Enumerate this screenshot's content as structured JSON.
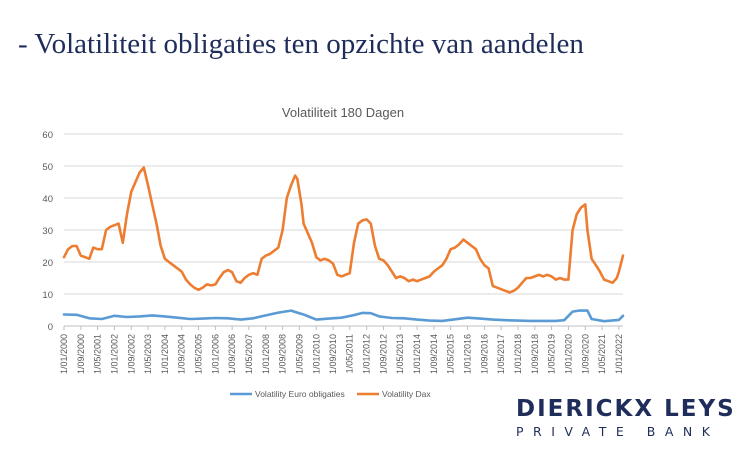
{
  "slide_title": "- Volatiliteit obligaties ten opzichte van aandelen",
  "brand": {
    "name": "DIERICKX LEYS",
    "tagline": "PRIVATE BANK"
  },
  "colors": {
    "title": "#1f2d5a",
    "series_bonds": "#5b9bd5",
    "series_dax": "#ed7d31",
    "grid": "#d9d9d9",
    "axis_text": "#595959"
  },
  "chart_data": {
    "type": "line",
    "title": "Volatiliteit 180 Dagen",
    "xlabel": "",
    "ylabel": "",
    "ylim": [
      0,
      60
    ],
    "yticks": [
      0,
      10,
      20,
      30,
      40,
      50,
      60
    ],
    "grid": true,
    "legend_position": "bottom",
    "x_range": [
      "2000-01-01",
      "2022-03-01"
    ],
    "x_tick_labels": [
      "1/01/2000",
      "1/09/2000",
      "1/05/2001",
      "1/01/2002",
      "1/09/2002",
      "1/05/2003",
      "1/01/2004",
      "1/09/2004",
      "1/05/2005",
      "1/01/2006",
      "1/09/2006",
      "1/05/2007",
      "1/01/2008",
      "1/09/2008",
      "1/05/2009",
      "1/01/2010",
      "1/09/2010",
      "1/05/2011",
      "1/01/2012",
      "1/09/2012",
      "1/05/2013",
      "1/01/2014",
      "1/09/2014",
      "1/05/2015",
      "1/01/2016",
      "1/09/2016",
      "1/05/2017",
      "1/01/2018",
      "1/09/2018",
      "1/05/2019",
      "1/01/2020",
      "1/09/2020",
      "1/05/2021",
      "1/01/2022"
    ],
    "series": [
      {
        "name": "Volatility Euro obligaties",
        "color": "#5b9bd5",
        "points": [
          [
            "2000-01-01",
            3.6
          ],
          [
            "2000-07-01",
            3.5
          ],
          [
            "2001-01-01",
            2.4
          ],
          [
            "2001-07-01",
            2.2
          ],
          [
            "2002-01-01",
            3.2
          ],
          [
            "2002-07-01",
            2.8
          ],
          [
            "2003-01-01",
            3.0
          ],
          [
            "2003-07-01",
            3.3
          ],
          [
            "2004-01-01",
            3.0
          ],
          [
            "2004-07-01",
            2.6
          ],
          [
            "2005-01-01",
            2.2
          ],
          [
            "2005-07-01",
            2.3
          ],
          [
            "2006-01-01",
            2.5
          ],
          [
            "2006-07-01",
            2.4
          ],
          [
            "2007-01-01",
            2.0
          ],
          [
            "2007-07-01",
            2.4
          ],
          [
            "2008-01-01",
            3.3
          ],
          [
            "2008-07-01",
            4.2
          ],
          [
            "2009-01-01",
            4.8
          ],
          [
            "2009-04-01",
            4.2
          ],
          [
            "2009-07-01",
            3.6
          ],
          [
            "2010-01-01",
            2.0
          ],
          [
            "2010-07-01",
            2.3
          ],
          [
            "2011-01-01",
            2.6
          ],
          [
            "2011-07-01",
            3.4
          ],
          [
            "2011-11-01",
            4.1
          ],
          [
            "2012-03-01",
            4.0
          ],
          [
            "2012-07-01",
            3.0
          ],
          [
            "2013-01-01",
            2.5
          ],
          [
            "2013-07-01",
            2.4
          ],
          [
            "2014-01-01",
            2.0
          ],
          [
            "2014-07-01",
            1.7
          ],
          [
            "2015-01-01",
            1.6
          ],
          [
            "2015-07-01",
            2.1
          ],
          [
            "2016-01-01",
            2.6
          ],
          [
            "2016-07-01",
            2.3
          ],
          [
            "2017-01-01",
            2.0
          ],
          [
            "2017-07-01",
            1.8
          ],
          [
            "2018-01-01",
            1.7
          ],
          [
            "2018-07-01",
            1.6
          ],
          [
            "2019-01-01",
            1.6
          ],
          [
            "2019-07-01",
            1.6
          ],
          [
            "2019-11-01",
            1.8
          ],
          [
            "2020-03-01",
            4.5
          ],
          [
            "2020-06-01",
            4.8
          ],
          [
            "2020-10-01",
            4.8
          ],
          [
            "2020-12-01",
            2.2
          ],
          [
            "2021-06-01",
            1.5
          ],
          [
            "2022-01-01",
            1.9
          ],
          [
            "2022-03-01",
            3.2
          ]
        ]
      },
      {
        "name": "Volatility Dax",
        "color": "#ed7d31",
        "points": [
          [
            "2000-01-01",
            21.5
          ],
          [
            "2000-03-01",
            24
          ],
          [
            "2000-05-01",
            25
          ],
          [
            "2000-07-01",
            25
          ],
          [
            "2000-09-01",
            22
          ],
          [
            "2000-11-01",
            21.5
          ],
          [
            "2001-01-01",
            21
          ],
          [
            "2001-03-01",
            24.5
          ],
          [
            "2001-05-01",
            24
          ],
          [
            "2001-07-01",
            24
          ],
          [
            "2001-09-01",
            30
          ],
          [
            "2001-11-01",
            31
          ],
          [
            "2002-01-01",
            31.5
          ],
          [
            "2002-03-01",
            32
          ],
          [
            "2002-05-01",
            26
          ],
          [
            "2002-07-01",
            35
          ],
          [
            "2002-09-01",
            42
          ],
          [
            "2002-11-01",
            45
          ],
          [
            "2003-01-01",
            48
          ],
          [
            "2003-03-01",
            49.5
          ],
          [
            "2003-05-01",
            44
          ],
          [
            "2003-07-01",
            38
          ],
          [
            "2003-09-01",
            32
          ],
          [
            "2003-11-01",
            25
          ],
          [
            "2004-01-01",
            21
          ],
          [
            "2004-03-01",
            20
          ],
          [
            "2004-05-01",
            19
          ],
          [
            "2004-07-01",
            18
          ],
          [
            "2004-09-01",
            17
          ],
          [
            "2004-11-01",
            14.5
          ],
          [
            "2005-01-01",
            13
          ],
          [
            "2005-03-01",
            12
          ],
          [
            "2005-05-01",
            11.3
          ],
          [
            "2005-07-01",
            12
          ],
          [
            "2005-09-01",
            13
          ],
          [
            "2005-11-01",
            12.7
          ],
          [
            "2006-01-01",
            13
          ],
          [
            "2006-03-01",
            15
          ],
          [
            "2006-05-01",
            16.8
          ],
          [
            "2006-07-01",
            17.5
          ],
          [
            "2006-09-01",
            16.8
          ],
          [
            "2006-11-01",
            14
          ],
          [
            "2007-01-01",
            13.5
          ],
          [
            "2007-03-01",
            15
          ],
          [
            "2007-05-01",
            16
          ],
          [
            "2007-07-01",
            16.5
          ],
          [
            "2007-09-01",
            16
          ],
          [
            "2007-11-01",
            21
          ],
          [
            "2008-01-01",
            22
          ],
          [
            "2008-03-01",
            22.5
          ],
          [
            "2008-05-01",
            23.5
          ],
          [
            "2008-07-01",
            24.5
          ],
          [
            "2008-09-01",
            30
          ],
          [
            "2008-11-01",
            40
          ],
          [
            "2009-01-01",
            44
          ],
          [
            "2009-03-01",
            47
          ],
          [
            "2009-04-01",
            46
          ],
          [
            "2009-06-01",
            38
          ],
          [
            "2009-07-01",
            32
          ],
          [
            "2009-09-01",
            29
          ],
          [
            "2009-11-01",
            26
          ],
          [
            "2010-01-01",
            21.5
          ],
          [
            "2010-03-01",
            20.5
          ],
          [
            "2010-05-01",
            21
          ],
          [
            "2010-07-01",
            20.5
          ],
          [
            "2010-09-01",
            19.5
          ],
          [
            "2010-11-01",
            16
          ],
          [
            "2011-01-01",
            15.5
          ],
          [
            "2011-03-01",
            16
          ],
          [
            "2011-05-01",
            16.5
          ],
          [
            "2011-07-01",
            26
          ],
          [
            "2011-09-01",
            32
          ],
          [
            "2011-11-01",
            33
          ],
          [
            "2012-01-01",
            33.3
          ],
          [
            "2012-03-01",
            32
          ],
          [
            "2012-05-01",
            25
          ],
          [
            "2012-07-01",
            21
          ],
          [
            "2012-09-01",
            20.5
          ],
          [
            "2012-11-01",
            19
          ],
          [
            "2013-01-01",
            17
          ],
          [
            "2013-03-01",
            15
          ],
          [
            "2013-05-01",
            15.5
          ],
          [
            "2013-07-01",
            15
          ],
          [
            "2013-09-01",
            14
          ],
          [
            "2013-11-01",
            14.5
          ],
          [
            "2014-01-01",
            14
          ],
          [
            "2014-03-01",
            14.5
          ],
          [
            "2014-05-01",
            15
          ],
          [
            "2014-07-01",
            15.5
          ],
          [
            "2014-09-01",
            17
          ],
          [
            "2014-11-01",
            18
          ],
          [
            "2015-01-01",
            19
          ],
          [
            "2015-03-01",
            21
          ],
          [
            "2015-05-01",
            24
          ],
          [
            "2015-07-01",
            24.5
          ],
          [
            "2015-09-01",
            25.5
          ],
          [
            "2015-11-01",
            27
          ],
          [
            "2016-01-01",
            26
          ],
          [
            "2016-03-01",
            25
          ],
          [
            "2016-05-01",
            24
          ],
          [
            "2016-07-01",
            21
          ],
          [
            "2016-09-01",
            19
          ],
          [
            "2016-11-01",
            18
          ],
          [
            "2017-01-01",
            12.5
          ],
          [
            "2017-03-01",
            12
          ],
          [
            "2017-05-01",
            11.5
          ],
          [
            "2017-07-01",
            11
          ],
          [
            "2017-09-01",
            10.5
          ],
          [
            "2017-11-01",
            11
          ],
          [
            "2018-01-01",
            12
          ],
          [
            "2018-03-01",
            13.5
          ],
          [
            "2018-05-01",
            15
          ],
          [
            "2018-07-01",
            15
          ],
          [
            "2018-09-01",
            15.5
          ],
          [
            "2018-11-01",
            16
          ],
          [
            "2019-01-01",
            15.5
          ],
          [
            "2019-03-01",
            16
          ],
          [
            "2019-05-01",
            15.5
          ],
          [
            "2019-07-01",
            14.5
          ],
          [
            "2019-09-01",
            15
          ],
          [
            "2019-11-01",
            14.5
          ],
          [
            "2020-01-01",
            14.5
          ],
          [
            "2020-03-01",
            30
          ],
          [
            "2020-05-01",
            35
          ],
          [
            "2020-07-01",
            37
          ],
          [
            "2020-09-01",
            38
          ],
          [
            "2020-10-01",
            30
          ],
          [
            "2020-12-01",
            21
          ],
          [
            "2021-02-01",
            19
          ],
          [
            "2021-04-01",
            17
          ],
          [
            "2021-06-01",
            14.5
          ],
          [
            "2021-08-01",
            14
          ],
          [
            "2021-10-01",
            13.5
          ],
          [
            "2021-12-01",
            15
          ],
          [
            "2022-01-01",
            17
          ],
          [
            "2022-03-01",
            22
          ]
        ]
      }
    ]
  }
}
